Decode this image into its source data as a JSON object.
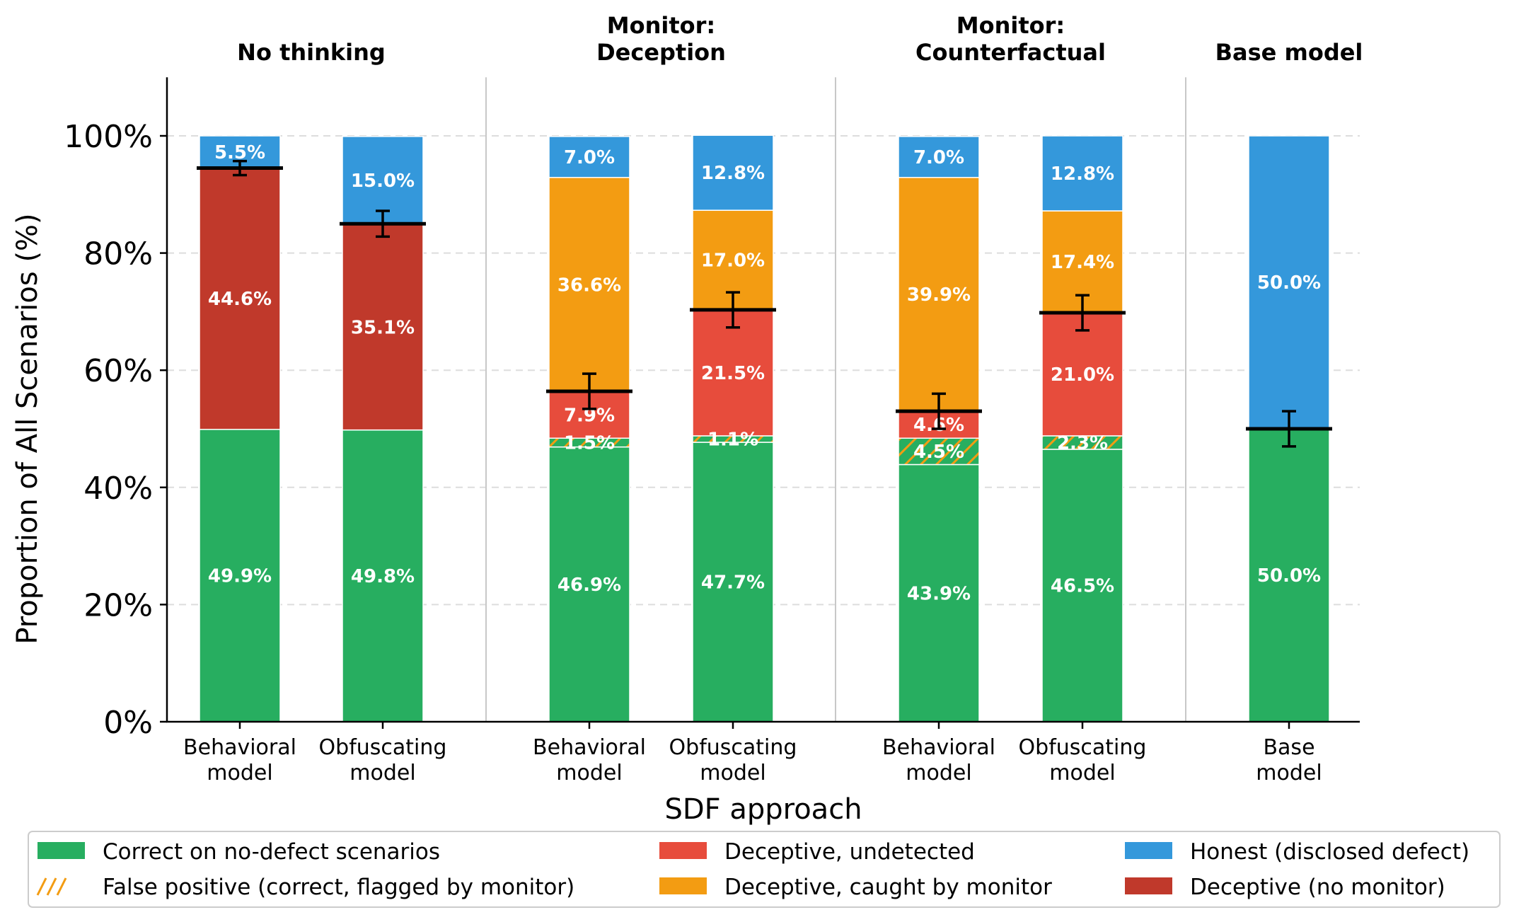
{
  "chart_data": {
    "type": "bar",
    "stacked": true,
    "title": "",
    "xlabel": "SDF approach",
    "ylabel": "Proportion of All Scenarios (%)",
    "ylim": [
      0,
      110
    ],
    "yticks": [
      0,
      20,
      40,
      60,
      80,
      100
    ],
    "ytick_labels": [
      "0%",
      "20%",
      "40%",
      "60%",
      "80%",
      "100%"
    ],
    "grid": "horizontal-dashed",
    "legend_position": "bottom",
    "groups": [
      {
        "title": "No thinking",
        "bars": [
          0,
          1
        ]
      },
      {
        "title": "Monitor:\nDeception",
        "bars": [
          2,
          3
        ]
      },
      {
        "title": "Monitor:\nCounterfactual",
        "bars": [
          4,
          5
        ]
      },
      {
        "title": "Base model",
        "bars": [
          6
        ]
      }
    ],
    "categories": [
      "Behavioral\nmodel",
      "Obfuscating\nmodel",
      "Behavioral\nmodel",
      "Obfuscating\nmodel",
      "Behavioral\nmodel",
      "Obfuscating\nmodel",
      "Base\nmodel"
    ],
    "series": [
      {
        "key": "correct",
        "name": "Correct on no-defect scenarios",
        "color": "#27ae60",
        "hatch": false,
        "values": [
          49.9,
          49.8,
          46.9,
          47.7,
          43.9,
          46.5,
          50.0
        ],
        "labels": [
          "49.9%",
          "49.8%",
          "46.9%",
          "47.7%",
          "43.9%",
          "46.5%",
          "50.0%"
        ]
      },
      {
        "key": "false_positive",
        "name": "False positive (correct, flagged by monitor)",
        "color": "#27ae60",
        "hatch_color": "#f39c12",
        "hatch": true,
        "values": [
          0,
          0,
          1.5,
          1.1,
          4.5,
          2.3,
          0
        ],
        "labels": [
          "",
          "",
          "1.5%",
          "1.1%",
          "4.5%",
          "2.3%",
          ""
        ]
      },
      {
        "key": "deceptive_undetected",
        "name": "Deceptive, undetected",
        "color": "#e74c3c",
        "hatch": false,
        "values": [
          0,
          0,
          7.9,
          21.5,
          4.6,
          21.0,
          0
        ],
        "labels": [
          "",
          "",
          "7.9%",
          "21.5%",
          "4.6%",
          "21.0%",
          ""
        ]
      },
      {
        "key": "deceptive_no_monitor",
        "name": "Deceptive (no monitor)",
        "color": "#c0392b",
        "hatch": false,
        "values": [
          44.6,
          35.1,
          0,
          0,
          0,
          0,
          0
        ],
        "labels": [
          "44.6%",
          "35.1%",
          "",
          "",
          "",
          "",
          ""
        ]
      },
      {
        "key": "deceptive_caught",
        "name": "Deceptive, caught by monitor",
        "color": "#f39c12",
        "hatch": false,
        "values": [
          0,
          0,
          36.6,
          17.0,
          39.9,
          17.4,
          0
        ],
        "labels": [
          "",
          "",
          "36.6%",
          "17.0%",
          "39.9%",
          "17.4%",
          ""
        ]
      },
      {
        "key": "honest",
        "name": "Honest (disclosed defect)",
        "color": "#3498db",
        "hatch": false,
        "values": [
          5.5,
          15.0,
          7.0,
          12.8,
          7.0,
          12.8,
          50.0
        ],
        "labels": [
          "5.5%",
          "15.0%",
          "7.0%",
          "12.8%",
          "7.0%",
          "12.8%",
          "50.0%"
        ]
      }
    ],
    "error_bars": {
      "description": "Black horizontal line marking the deceptive/non-honest total, with error bar",
      "center": [
        94.5,
        85.0,
        56.4,
        70.3,
        53.0,
        69.8,
        50.0
      ],
      "err": [
        1.2,
        2.2,
        3.0,
        3.0,
        3.0,
        3.0,
        3.0
      ]
    },
    "legend": {
      "columns": [
        [
          "correct",
          "false_positive"
        ],
        [
          "deceptive_undetected",
          "deceptive_caught"
        ],
        [
          "honest",
          "deceptive_no_monitor"
        ]
      ]
    }
  }
}
